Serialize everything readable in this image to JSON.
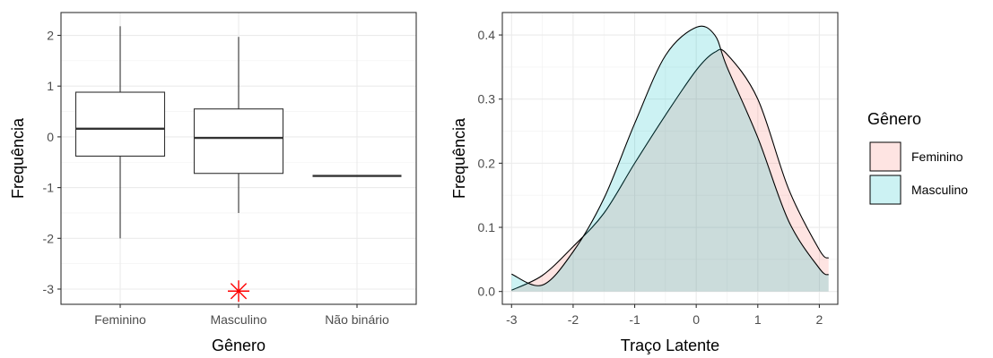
{
  "chart_data": [
    {
      "type": "box",
      "xlabel": "Gênero",
      "ylabel": "Frequência",
      "ylim": [
        -3.3,
        2.45
      ],
      "y_ticks": [
        {
          "value": 2,
          "label": "2"
        },
        {
          "value": 1,
          "label": "1"
        },
        {
          "value": 0,
          "label": "0"
        },
        {
          "value": -1,
          "label": "-1"
        },
        {
          "value": -2,
          "label": "-2"
        },
        {
          "value": -3,
          "label": "-3"
        }
      ],
      "grid": true,
      "categories": [
        "Feminino",
        "Masculino",
        "Não binário"
      ],
      "boxes": [
        {
          "category": "Feminino",
          "min": -2.0,
          "q1": -0.38,
          "median": 0.16,
          "q3": 0.88,
          "max": 2.18
        },
        {
          "category": "Masculino",
          "min": -1.5,
          "q1": -0.72,
          "median": -0.02,
          "q3": 0.55,
          "max": 1.97
        },
        {
          "category": "Não binário",
          "min": -0.77,
          "q1": -0.77,
          "median": -0.77,
          "q3": -0.77,
          "max": -0.77
        }
      ],
      "outliers": [
        {
          "category": "Masculino",
          "value": -3.04,
          "color": "#ff0000"
        }
      ]
    },
    {
      "type": "area",
      "xlabel": "Traço Latente",
      "ylabel": "Frequência",
      "xlim": [
        -3.15,
        2.3
      ],
      "ylim": [
        -0.02,
        0.435
      ],
      "x_ticks": [
        {
          "value": -3,
          "label": "-3"
        },
        {
          "value": -2,
          "label": "-2"
        },
        {
          "value": -1,
          "label": "-1"
        },
        {
          "value": 0,
          "label": "0"
        },
        {
          "value": 1,
          "label": "1"
        },
        {
          "value": 2,
          "label": "2"
        }
      ],
      "y_ticks": [
        {
          "value": 0.4,
          "label": "0.4"
        },
        {
          "value": 0.3,
          "label": "0.3"
        },
        {
          "value": 0.2,
          "label": "0.2"
        },
        {
          "value": 0.1,
          "label": "0.1"
        },
        {
          "value": 0.0,
          "label": "0.0"
        }
      ],
      "grid": true,
      "legend": {
        "title": "Gênero",
        "position": "right"
      },
      "series": [
        {
          "name": "Feminino",
          "fill": "#f8766d",
          "x": [
            -3.0,
            -2.5,
            -2.0,
            -1.5,
            -1.0,
            -0.5,
            0.0,
            0.3,
            0.5,
            1.0,
            1.5,
            2.0,
            2.15
          ],
          "values": [
            0.002,
            0.025,
            0.07,
            0.122,
            0.2,
            0.275,
            0.345,
            0.373,
            0.37,
            0.3,
            0.16,
            0.065,
            0.052
          ]
        },
        {
          "name": "Masculino",
          "fill": "#00bfc4",
          "x": [
            -3.0,
            -2.5,
            -2.0,
            -1.5,
            -1.0,
            -0.5,
            0.0,
            0.3,
            0.5,
            1.0,
            1.5,
            2.0,
            2.15
          ],
          "values": [
            0.027,
            0.01,
            0.062,
            0.145,
            0.262,
            0.368,
            0.412,
            0.4,
            0.35,
            0.24,
            0.11,
            0.036,
            0.026
          ]
        }
      ]
    }
  ]
}
